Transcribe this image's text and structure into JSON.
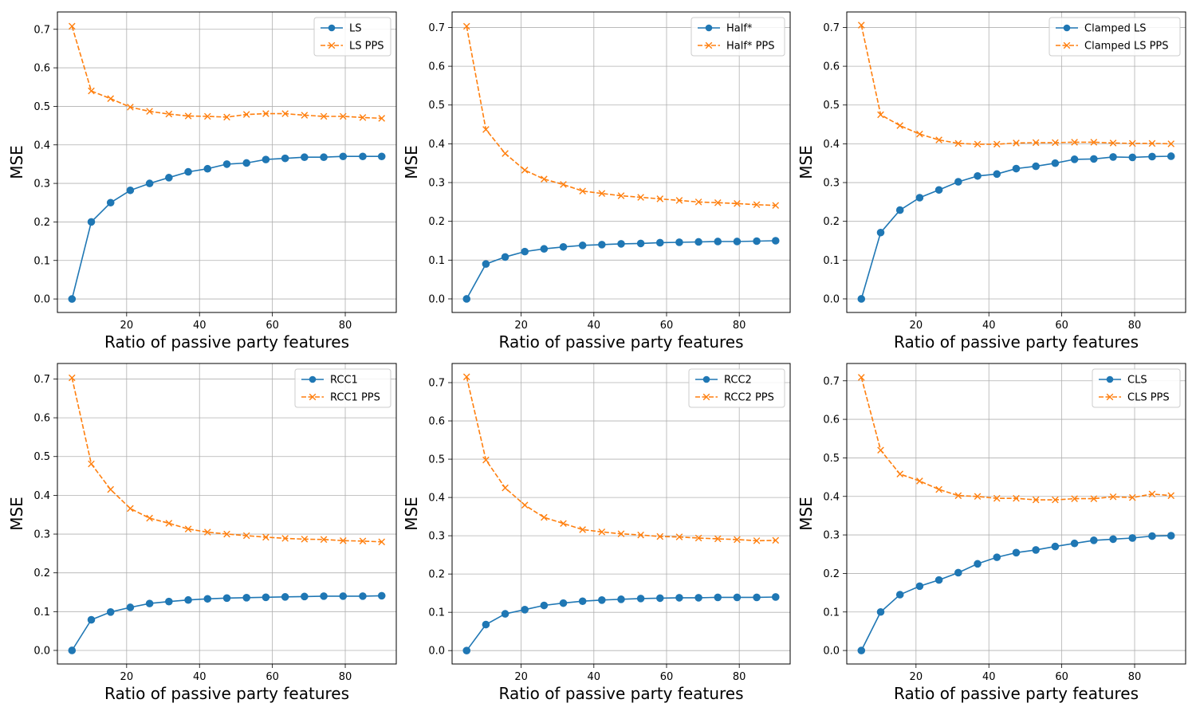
{
  "chart_data": [
    {
      "type": "line",
      "xlabel": "Ratio of passive party features",
      "ylabel": "MSE",
      "xlim": [
        1,
        94
      ],
      "ylim": [
        -0.035,
        0.745
      ],
      "xticks": [
        "20",
        "40",
        "60",
        "80"
      ],
      "yticks": [
        "0.0",
        "0.1",
        "0.2",
        "0.3",
        "0.4",
        "0.5",
        "0.6",
        "0.7"
      ],
      "grid": true,
      "legend": "top-right",
      "x": [
        5,
        10.3,
        15.6,
        21,
        26.3,
        31.6,
        36.9,
        42.2,
        47.5,
        52.9,
        58.2,
        63.5,
        68.8,
        74.1,
        79.4,
        84.8,
        90
      ],
      "series": [
        {
          "name": "LS",
          "color": "#1f77b4",
          "style": "solid",
          "marker": "o",
          "values": [
            0.0,
            0.2,
            0.25,
            0.282,
            0.3,
            0.315,
            0.33,
            0.338,
            0.35,
            0.353,
            0.362,
            0.365,
            0.368,
            0.368,
            0.37,
            0.37,
            0.37
          ]
        },
        {
          "name": "LS PPS",
          "color": "#ff7f0e",
          "style": "dashed",
          "marker": "x",
          "values": [
            0.708,
            0.54,
            0.52,
            0.498,
            0.487,
            0.48,
            0.475,
            0.474,
            0.472,
            0.479,
            0.481,
            0.481,
            0.477,
            0.474,
            0.474,
            0.471,
            0.469
          ]
        }
      ]
    },
    {
      "type": "line",
      "xlabel": "Ratio of passive party features",
      "ylabel": "MSE",
      "xlim": [
        1,
        94
      ],
      "ylim": [
        -0.035,
        0.74
      ],
      "xticks": [
        "20",
        "40",
        "60",
        "80"
      ],
      "yticks": [
        "0.0",
        "0.1",
        "0.2",
        "0.3",
        "0.4",
        "0.5",
        "0.6",
        "0.7"
      ],
      "grid": true,
      "legend": "top-right",
      "x": [
        5,
        10.3,
        15.6,
        21,
        26.3,
        31.6,
        36.9,
        42.2,
        47.5,
        52.9,
        58.2,
        63.5,
        68.8,
        74.1,
        79.4,
        84.8,
        90
      ],
      "series": [
        {
          "name": "Half*",
          "color": "#1f77b4",
          "style": "solid",
          "marker": "o",
          "values": [
            0.0,
            0.09,
            0.108,
            0.122,
            0.129,
            0.134,
            0.138,
            0.14,
            0.142,
            0.143,
            0.145,
            0.146,
            0.147,
            0.148,
            0.148,
            0.149,
            0.15
          ]
        },
        {
          "name": "Half* PPS",
          "color": "#ff7f0e",
          "style": "dashed",
          "marker": "x",
          "values": [
            0.703,
            0.437,
            0.375,
            0.332,
            0.309,
            0.295,
            0.278,
            0.272,
            0.266,
            0.262,
            0.258,
            0.254,
            0.25,
            0.248,
            0.246,
            0.243,
            0.241
          ]
        }
      ]
    },
    {
      "type": "line",
      "xlabel": "Ratio of passive party features",
      "ylabel": "MSE",
      "xlim": [
        1,
        94
      ],
      "ylim": [
        -0.035,
        0.74
      ],
      "xticks": [
        "20",
        "40",
        "60",
        "80"
      ],
      "yticks": [
        "0.0",
        "0.1",
        "0.2",
        "0.3",
        "0.4",
        "0.5",
        "0.6",
        "0.7"
      ],
      "grid": true,
      "legend": "top-right",
      "x": [
        5,
        10.3,
        15.6,
        21,
        26.3,
        31.6,
        36.9,
        42.2,
        47.5,
        52.9,
        58.2,
        63.5,
        68.8,
        74.1,
        79.4,
        84.8,
        90
      ],
      "series": [
        {
          "name": "Clamped LS",
          "color": "#1f77b4",
          "style": "solid",
          "marker": "o",
          "values": [
            0.0,
            0.171,
            0.229,
            0.261,
            0.281,
            0.302,
            0.317,
            0.322,
            0.336,
            0.342,
            0.35,
            0.36,
            0.361,
            0.366,
            0.365,
            0.367,
            0.368
          ]
        },
        {
          "name": "Clamped LS PPS",
          "color": "#ff7f0e",
          "style": "dashed",
          "marker": "x",
          "values": [
            0.706,
            0.475,
            0.447,
            0.425,
            0.41,
            0.401,
            0.399,
            0.399,
            0.402,
            0.403,
            0.403,
            0.404,
            0.404,
            0.402,
            0.401,
            0.401,
            0.4
          ]
        }
      ]
    },
    {
      "type": "line",
      "xlabel": "Ratio of passive party features",
      "ylabel": "MSE",
      "xlim": [
        1,
        94
      ],
      "ylim": [
        -0.035,
        0.74
      ],
      "xticks": [
        "20",
        "40",
        "60",
        "80"
      ],
      "yticks": [
        "0.0",
        "0.1",
        "0.2",
        "0.3",
        "0.4",
        "0.5",
        "0.6",
        "0.7"
      ],
      "grid": true,
      "legend": "top-right",
      "x": [
        5,
        10.3,
        15.6,
        21,
        26.3,
        31.6,
        36.9,
        42.2,
        47.5,
        52.9,
        58.2,
        63.5,
        68.8,
        74.1,
        79.4,
        84.8,
        90
      ],
      "series": [
        {
          "name": "RCC1",
          "color": "#1f77b4",
          "style": "solid",
          "marker": "o",
          "values": [
            0.0,
            0.079,
            0.099,
            0.111,
            0.121,
            0.126,
            0.13,
            0.133,
            0.135,
            0.136,
            0.137,
            0.138,
            0.139,
            0.14,
            0.14,
            0.14,
            0.141
          ]
        },
        {
          "name": "RCC1 PPS",
          "color": "#ff7f0e",
          "style": "dashed",
          "marker": "x",
          "values": [
            0.703,
            0.481,
            0.415,
            0.366,
            0.341,
            0.328,
            0.313,
            0.305,
            0.3,
            0.296,
            0.292,
            0.289,
            0.287,
            0.286,
            0.283,
            0.282,
            0.28
          ]
        }
      ]
    },
    {
      "type": "line",
      "xlabel": "Ratio of passive party features",
      "ylabel": "MSE",
      "xlim": [
        1,
        94
      ],
      "ylim": [
        -0.035,
        0.75
      ],
      "xticks": [
        "20",
        "40",
        "60",
        "80"
      ],
      "yticks": [
        "0.0",
        "0.1",
        "0.2",
        "0.3",
        "0.4",
        "0.5",
        "0.6",
        "0.7"
      ],
      "grid": true,
      "legend": "top-right",
      "x": [
        5,
        10.3,
        15.6,
        21,
        26.3,
        31.6,
        36.9,
        42.2,
        47.5,
        52.9,
        58.2,
        63.5,
        68.8,
        74.1,
        79.4,
        84.8,
        90
      ],
      "series": [
        {
          "name": "RCC2",
          "color": "#1f77b4",
          "style": "solid",
          "marker": "o",
          "values": [
            0.0,
            0.068,
            0.096,
            0.107,
            0.118,
            0.124,
            0.129,
            0.132,
            0.134,
            0.136,
            0.137,
            0.138,
            0.138,
            0.139,
            0.139,
            0.139,
            0.14
          ]
        },
        {
          "name": "RCC2 PPS",
          "color": "#ff7f0e",
          "style": "dashed",
          "marker": "x",
          "values": [
            0.715,
            0.498,
            0.425,
            0.38,
            0.348,
            0.332,
            0.316,
            0.31,
            0.305,
            0.302,
            0.298,
            0.297,
            0.294,
            0.292,
            0.29,
            0.287,
            0.288
          ]
        }
      ]
    },
    {
      "type": "line",
      "xlabel": "Ratio of passive party features",
      "ylabel": "MSE",
      "xlim": [
        1,
        94
      ],
      "ylim": [
        -0.035,
        0.745
      ],
      "xticks": [
        "20",
        "40",
        "60",
        "80"
      ],
      "yticks": [
        "0.0",
        "0.1",
        "0.2",
        "0.3",
        "0.4",
        "0.5",
        "0.6",
        "0.7"
      ],
      "grid": true,
      "legend": "top-right",
      "x": [
        5,
        10.3,
        15.6,
        21,
        26.3,
        31.6,
        36.9,
        42.2,
        47.5,
        52.9,
        58.2,
        63.5,
        68.8,
        74.1,
        79.4,
        84.8,
        90
      ],
      "series": [
        {
          "name": "CLS",
          "color": "#1f77b4",
          "style": "solid",
          "marker": "o",
          "values": [
            0.0,
            0.1,
            0.145,
            0.167,
            0.183,
            0.202,
            0.225,
            0.242,
            0.254,
            0.261,
            0.27,
            0.278,
            0.286,
            0.289,
            0.292,
            0.297,
            0.298
          ]
        },
        {
          "name": "CLS PPS",
          "color": "#ff7f0e",
          "style": "dashed",
          "marker": "x",
          "values": [
            0.709,
            0.52,
            0.458,
            0.44,
            0.418,
            0.402,
            0.4,
            0.395,
            0.395,
            0.391,
            0.391,
            0.394,
            0.394,
            0.399,
            0.397,
            0.406,
            0.402
          ]
        }
      ]
    }
  ]
}
